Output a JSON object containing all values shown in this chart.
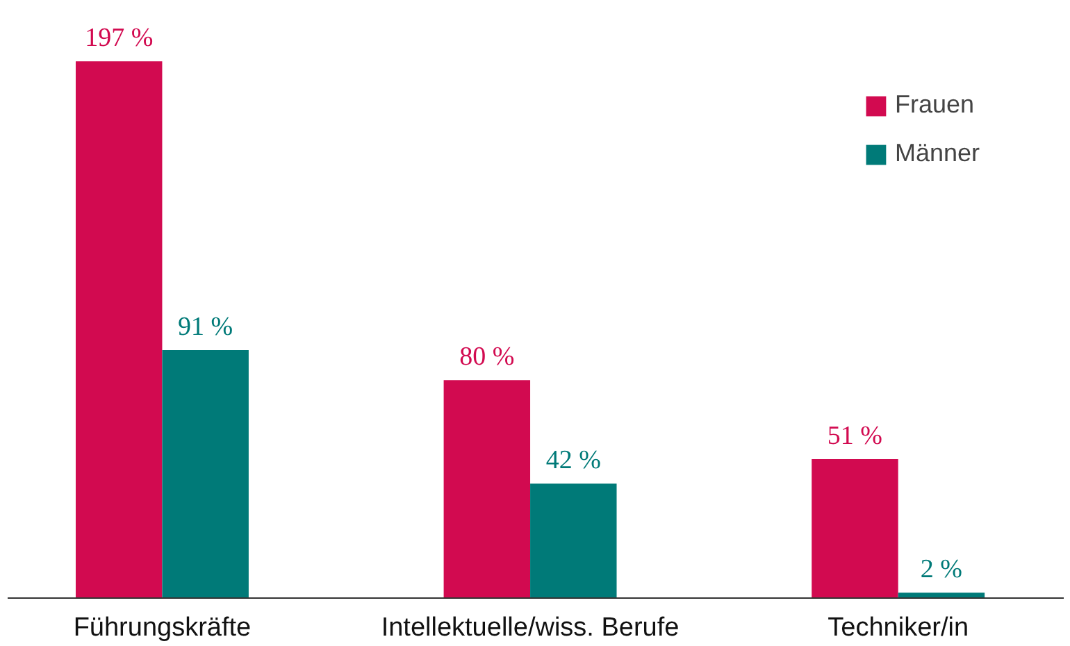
{
  "chart_data": {
    "type": "bar",
    "categories": [
      "Führungskräfte",
      "Intellektuelle/wiss. Berufe",
      "Techniker/in"
    ],
    "series": [
      {
        "name": "Frauen",
        "color": "#d20a50",
        "values": [
          197,
          80,
          51
        ],
        "value_labels": [
          "197 %",
          "80 %",
          "51 %"
        ]
      },
      {
        "name": "Männer",
        "color": "#007a78",
        "values": [
          91,
          42,
          2
        ],
        "value_labels": [
          "91 %",
          "42 %",
          "2 %"
        ]
      }
    ],
    "legend": "top right",
    "grid": false
  }
}
